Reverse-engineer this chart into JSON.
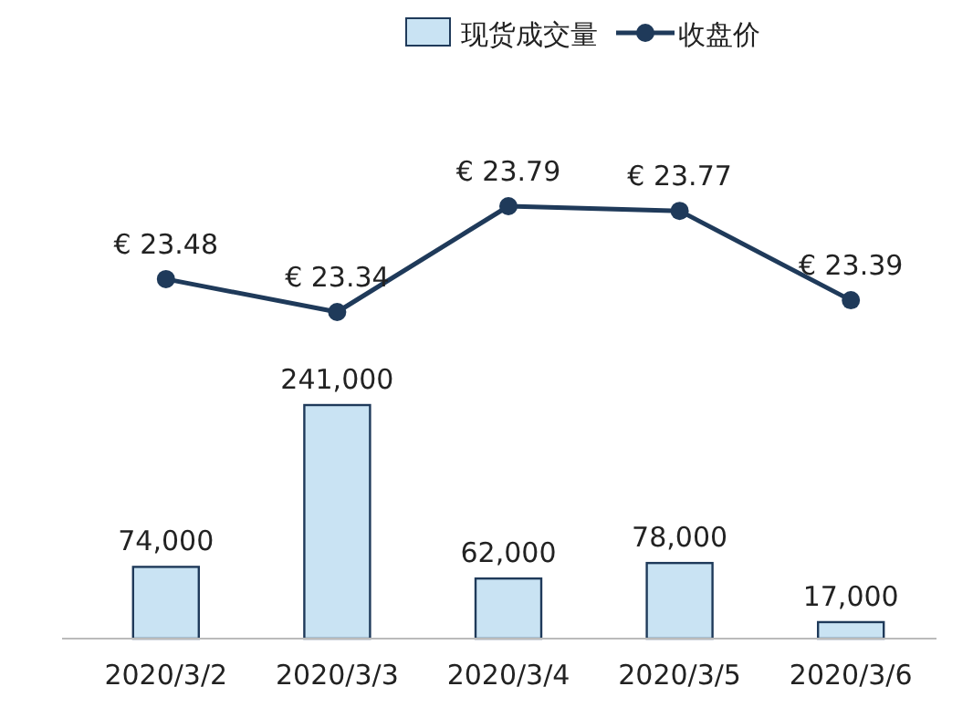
{
  "chart_data": [
    {
      "type": "line",
      "categories": [
        null,
        null,
        null,
        null,
        null
      ],
      "tick_labels": false,
      "legend": "top",
      "marker": "circle",
      "series": [
        {
          "name": "收盘价",
          "color": "#1f3a5a",
          "values": [
            23.48,
            23.34,
            23.79,
            23.77,
            23.39
          ],
          "value_labels": [
            "€ 23.48",
            "€ 23.34",
            "€ 23.79",
            "€ 23.77",
            "€ 23.39"
          ]
        }
      ]
    },
    {
      "type": "bar",
      "categories": [
        "2020/3/2",
        "2020/3/3",
        "2020/3/4",
        "2020/3/5",
        "2020/3/6"
      ],
      "legend": "top",
      "series": [
        {
          "name": "现货成交量",
          "color": "#c9e3f3",
          "values": [
            74000,
            241000,
            62000,
            78000,
            17000
          ],
          "value_labels": [
            "74,000",
            "241,000",
            "62,000",
            "78,000",
            "17,000"
          ]
        }
      ]
    }
  ]
}
